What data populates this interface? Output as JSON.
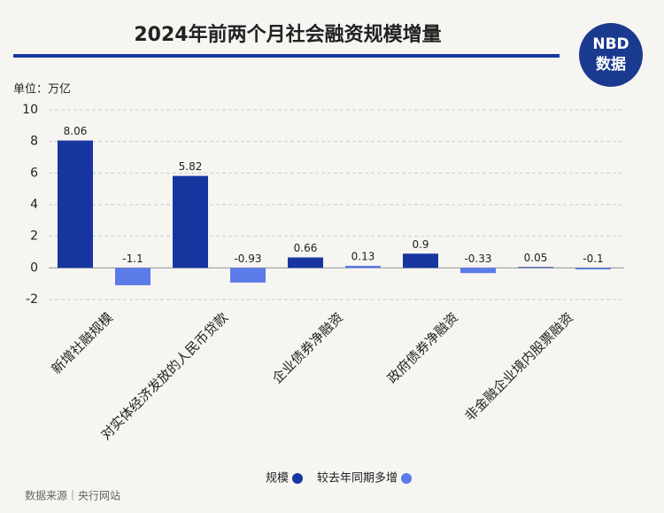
{
  "chart_data": {
    "type": "bar",
    "title": "2024年前两个月社会融资规模增量",
    "unit_label": "单位：万亿",
    "source": "数据来源｜央行网站",
    "logo": {
      "top": "NBD",
      "bottom": "数据"
    },
    "categories": [
      "新增社融规模",
      "对实体经济发放的人民币贷款",
      "企业债券净融资",
      "政府债券净融资",
      "非金融企业境内股票融资"
    ],
    "series": [
      {
        "name": "规模",
        "color": "#1736a0",
        "values": [
          8.06,
          5.82,
          0.66,
          0.9,
          0.05
        ]
      },
      {
        "name": "较去年同期多增",
        "color": "#5b7be8",
        "values": [
          -1.1,
          -0.93,
          0.13,
          -0.33,
          -0.1
        ]
      }
    ],
    "ylim": [
      -2,
      10
    ],
    "yticks": [
      -2,
      0,
      2,
      4,
      6,
      8,
      10
    ],
    "grid": true
  }
}
